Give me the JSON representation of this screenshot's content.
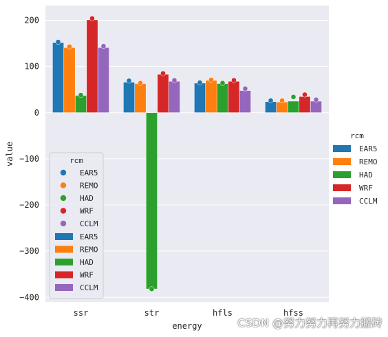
{
  "chart_data": {
    "type": "bar",
    "xlabel": "energy",
    "ylabel": "value",
    "categories": [
      "ssr",
      "str",
      "hfls",
      "hfss"
    ],
    "ylim": [
      -410,
      232
    ],
    "yticks": [
      -400,
      -300,
      -200,
      -100,
      0,
      100,
      200
    ],
    "grid": true,
    "series": [
      {
        "name": "EAR5",
        "color": "#1f77b4",
        "values": [
          152,
          66,
          64,
          24
        ]
      },
      {
        "name": "REMO",
        "color": "#ff7f0e",
        "values": [
          141,
          63,
          70,
          23
        ]
      },
      {
        "name": "HAD",
        "color": "#2ca02c",
        "values": [
          37,
          -382,
          63,
          25
        ]
      },
      {
        "name": "WRF",
        "color": "#d62728",
        "values": [
          201,
          83,
          68,
          35
        ]
      },
      {
        "name": "CCLM",
        "color": "#9467bd",
        "values": [
          141,
          68,
          48,
          25
        ]
      }
    ],
    "points": [
      {
        "series": "EAR5",
        "values": [
          153,
          69,
          65,
          26
        ]
      },
      {
        "series": "REMO",
        "values": [
          143,
          64,
          71,
          26
        ]
      },
      {
        "series": "HAD",
        "values": [
          38,
          -382,
          64,
          34
        ]
      },
      {
        "series": "WRF",
        "values": [
          204,
          85,
          70,
          39
        ]
      },
      {
        "series": "CCLM",
        "values": [
          144,
          70,
          52,
          28
        ]
      }
    ],
    "inner_legend": {
      "title": "rcm",
      "placement": "lower-left"
    },
    "outer_legend": {
      "title": "rcm",
      "placement": "right"
    }
  },
  "watermark": "CSDN @努力努力再努力搬砖"
}
